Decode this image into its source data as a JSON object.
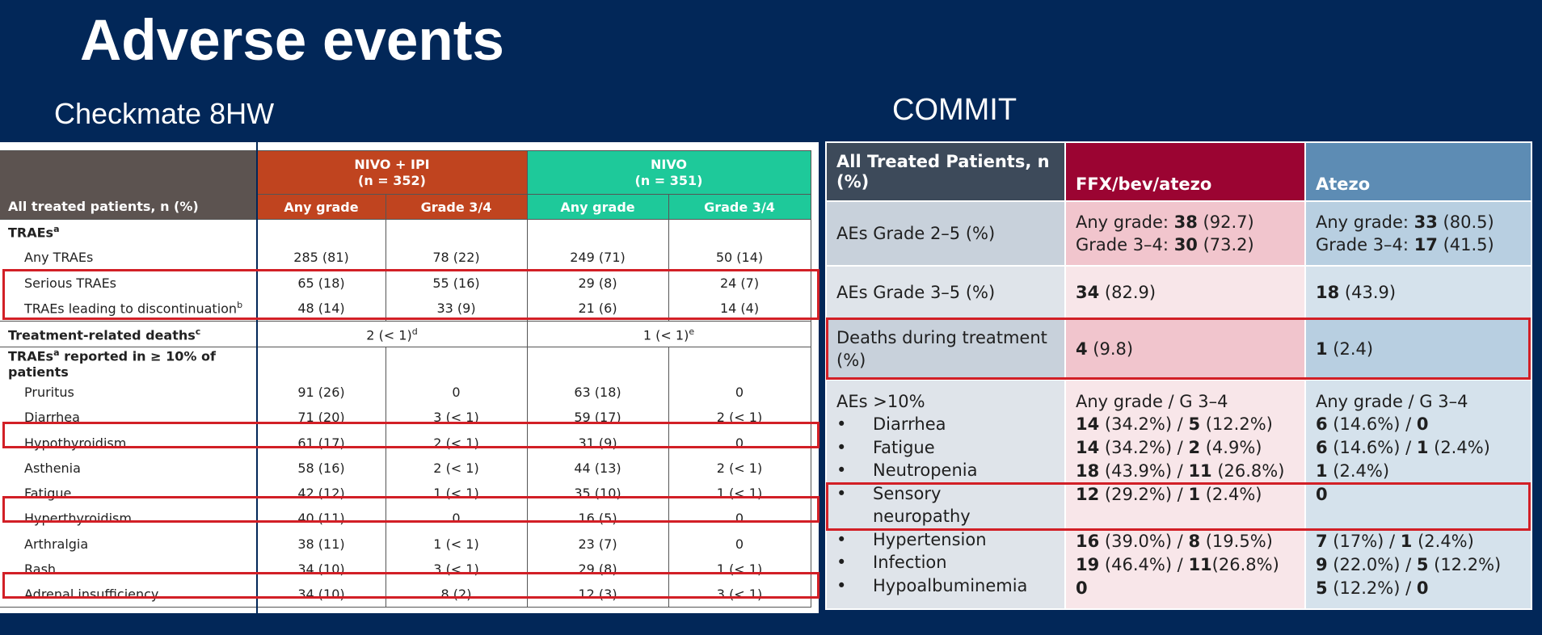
{
  "title": "Adverse events",
  "left_heading": "Checkmate 8HW",
  "right_heading": "COMMIT",
  "checkmate": {
    "row_header": "All treated patients, n (%)",
    "group1": {
      "name": "NIVO + IPI",
      "n": "(n = 352)"
    },
    "group2": {
      "name": "NIVO",
      "n": "(n = 351)"
    },
    "sub_any": "Any grade",
    "sub_g34": "Grade 3/4",
    "traes_label": "TRAEs",
    "sup_a": "a",
    "sup_b": "b",
    "sup_c": "c",
    "sup_d": "d",
    "sup_e": "e",
    "rows1": [
      {
        "label": "Any TRAEs",
        "v1": "285 (81)",
        "v2": "78 (22)",
        "v3": "249 (71)",
        "v4": "50 (14)"
      },
      {
        "label": "Serious TRAEs",
        "v1": "65 (18)",
        "v2": "55 (16)",
        "v3": "29 (8)",
        "v4": "24 (7)"
      },
      {
        "label": "TRAEs leading to discontinuation",
        "v1": "48 (14)",
        "v2": "33 (9)",
        "v3": "21 (6)",
        "v4": "14 (4)"
      }
    ],
    "deaths_label": "Treatment-related deaths",
    "deaths_v1": "2 (< 1)",
    "deaths_v2": "1 (< 1)",
    "reported_label_a": "TRAEs",
    "reported_label_b": " reported in ≥ 10% of patients",
    "rows2": [
      {
        "label": "Pruritus",
        "v1": "91 (26)",
        "v2": "0",
        "v3": "63 (18)",
        "v4": "0"
      },
      {
        "label": "Diarrhea",
        "v1": "71 (20)",
        "v2": "3 (< 1)",
        "v3": "59 (17)",
        "v4": "2 (< 1)"
      },
      {
        "label": "Hypothyroidism",
        "v1": "61 (17)",
        "v2": "2 (< 1)",
        "v3": "31 (9)",
        "v4": "0"
      },
      {
        "label": "Asthenia",
        "v1": "58 (16)",
        "v2": "2 (< 1)",
        "v3": "44 (13)",
        "v4": "2 (< 1)"
      },
      {
        "label": "Fatigue",
        "v1": "42 (12)",
        "v2": "1 (< 1)",
        "v3": "35 (10)",
        "v4": "1 (< 1)"
      },
      {
        "label": "Hyperthyroidism",
        "v1": "40 (11)",
        "v2": "0",
        "v3": "16 (5)",
        "v4": "0"
      },
      {
        "label": "Arthralgia",
        "v1": "38 (11)",
        "v2": "1 (< 1)",
        "v3": "23 (7)",
        "v4": "0"
      },
      {
        "label": "Rash",
        "v1": "34 (10)",
        "v2": "3 (< 1)",
        "v3": "29 (8)",
        "v4": "1 (< 1)"
      },
      {
        "label": "Adrenal insufficiency",
        "v1": "34 (10)",
        "v2": "8 (2)",
        "v3": "12 (3)",
        "v4": "3 (< 1)"
      }
    ]
  },
  "commit": {
    "header": [
      "All Treated Patients, n (%)",
      "FFX/bev/atezo",
      "Atezo"
    ],
    "grade25": {
      "label": "AEs Grade 2–5 (%)",
      "b": {
        "l1": "Any grade: ",
        "l1b": "38",
        "l1c": " (92.7)",
        "l2": "Grade 3–4: ",
        "l2b": "30",
        "l2c": " (73.2)"
      },
      "c": {
        "l1": "Any grade: ",
        "l1b": "33",
        "l1c": " (80.5)",
        "l2": "Grade 3–4: ",
        "l2b": "17",
        "l2c": " (41.5)"
      }
    },
    "grade35": {
      "label": "AEs Grade 3–5 (%)",
      "b_bold": "34",
      "b_rest": " (82.9)",
      "c_bold": "18",
      "c_rest": " (43.9)"
    },
    "deaths": {
      "label": "Deaths during treatment (%)",
      "b_bold": "4",
      "b_rest": " (9.8)",
      "c_bold": "1",
      "c_rest": " (2.4)"
    },
    "aes10": {
      "label": "AEs >10%",
      "items": [
        "Diarrhea",
        "Fatigue",
        "Neutropenia",
        "Sensory neuropathy",
        "Hypertension",
        "Infection",
        "Hypoalbuminemia"
      ],
      "col_header": "Any grade / G 3–4",
      "b_values": [
        [
          "14",
          " (34.2%) / ",
          "5",
          " (12.2%)"
        ],
        [
          "14",
          " (34.2%) / ",
          "2",
          " (4.9%)"
        ],
        [
          "18",
          " (43.9%) / ",
          "11",
          " (26.8%)"
        ],
        [
          "12",
          " (29.2%) / ",
          "1",
          " (2.4%)"
        ],
        [
          "16",
          " (39.0%) / ",
          "8",
          " (19.5%)"
        ],
        [
          "19",
          " (46.4%) / ",
          "11",
          "(26.8%)"
        ],
        [
          "0",
          "",
          "",
          ""
        ]
      ],
      "c_values": [
        [
          "6",
          " (14.6%) / ",
          "0",
          ""
        ],
        [
          "6",
          " (14.6%) / ",
          "1",
          " (2.4%)"
        ],
        [
          "1",
          " (2.4%)",
          "",
          ""
        ],
        [
          "0",
          "",
          "",
          ""
        ],
        [
          "7",
          " (17%) / ",
          "1",
          " (2.4%)"
        ],
        [
          "9",
          " (22.0%) / ",
          "5",
          " (12.2%)"
        ],
        [
          "5",
          " (12.2%) / ",
          "0",
          ""
        ]
      ]
    }
  }
}
